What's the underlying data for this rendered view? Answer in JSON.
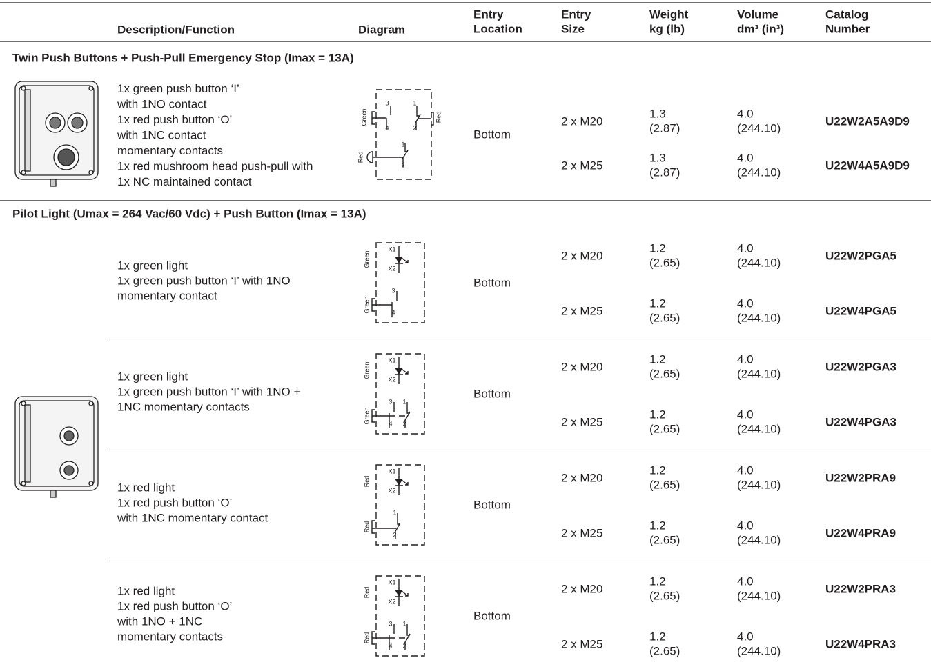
{
  "header": {
    "columns": [
      [
        "Description/Function"
      ],
      [
        "Diagram"
      ],
      [
        "Entry",
        "Location"
      ],
      [
        "Entry",
        "Size"
      ],
      [
        "Weight",
        "kg (lb)"
      ],
      [
        "Volume",
        "dm³ (in³)"
      ],
      [
        "Catalog",
        "Number"
      ]
    ]
  },
  "sections": [
    {
      "title": "Twin Push Buttons + Push-Pull Emergency Stop (Imax = 13A)",
      "groups": [
        {
          "description": [
            "1x green push button ‘I’",
            "with 1NO contact",
            "1x red push button ‘O’",
            "with 1NC contact",
            "momentary contacts",
            "1x red mushroom head push-pull with",
            "1x NC maintained contact"
          ],
          "diagram_labels": [
            "Green",
            "3",
            "4",
            "1",
            "2",
            "Red",
            "Red",
            "1",
            "2"
          ],
          "entry_location": "Bottom",
          "rows": [
            {
              "entry_size": "2 x M20",
              "weight": [
                "1.3",
                "(2.87)"
              ],
              "volume": [
                "4.0",
                "(244.10)"
              ],
              "catalog": "U22W2A5A9D9"
            },
            {
              "entry_size": "2 x M25",
              "weight": [
                "1.3",
                "(2.87)"
              ],
              "volume": [
                "4.0",
                "(244.10)"
              ],
              "catalog": "U22W4A5A9D9"
            }
          ]
        }
      ]
    },
    {
      "title": "Pilot Light (Umax = 264 Vac/60 Vdc) + Push Button (Imax = 13A)",
      "groups": [
        {
          "description": [
            "1x green light",
            "1x green push button ‘I’ with 1NO",
            "momentary contact"
          ],
          "diagram_labels": [
            "X1",
            "X2",
            "Green",
            "Green",
            "3",
            "4"
          ],
          "entry_location": "Bottom",
          "rows": [
            {
              "entry_size": "2 x M20",
              "weight": [
                "1.2",
                "(2.65)"
              ],
              "volume": [
                "4.0",
                "(244.10)"
              ],
              "catalog": "U22W2PGA5"
            },
            {
              "entry_size": "2 x M25",
              "weight": [
                "1.2",
                "(2.65)"
              ],
              "volume": [
                "4.0",
                "(244.10)"
              ],
              "catalog": "U22W4PGA5"
            }
          ]
        },
        {
          "description": [
            "1x green light",
            "1x green push button ‘I’ with 1NO +",
            "1NC momentary contacts"
          ],
          "diagram_labels": [
            "X1",
            "X2",
            "Green",
            "Green",
            "3",
            "4",
            "1",
            "2"
          ],
          "entry_location": "Bottom",
          "rows": [
            {
              "entry_size": "2 x M20",
              "weight": [
                "1.2",
                "(2.65)"
              ],
              "volume": [
                "4.0",
                "(244.10)"
              ],
              "catalog": "U22W2PGA3"
            },
            {
              "entry_size": "2 x M25",
              "weight": [
                "1.2",
                "(2.65)"
              ],
              "volume": [
                "4.0",
                "(244.10)"
              ],
              "catalog": "U22W4PGA3"
            }
          ]
        },
        {
          "description": [
            "1x red light",
            "1x red push button ‘O’",
            "with 1NC momentary contact"
          ],
          "diagram_labels": [
            "X1",
            "X2",
            "Red",
            "Red",
            "1",
            "2"
          ],
          "entry_location": "Bottom",
          "rows": [
            {
              "entry_size": "2 x M20",
              "weight": [
                "1.2",
                "(2.65)"
              ],
              "volume": [
                "4.0",
                "(244.10)"
              ],
              "catalog": "U22W2PRA9"
            },
            {
              "entry_size": "2 x M25",
              "weight": [
                "1.2",
                "(2.65)"
              ],
              "volume": [
                "4.0",
                "(244.10)"
              ],
              "catalog": "U22W4PRA9"
            }
          ]
        },
        {
          "description": [
            "1x red light",
            "1x red push button ‘O’",
            "with 1NO + 1NC",
            "momentary contacts"
          ],
          "diagram_labels": [
            "X1",
            "X2",
            "Red",
            "Red",
            "3",
            "4",
            "1",
            "2"
          ],
          "entry_location": "Bottom",
          "rows": [
            {
              "entry_size": "2 x M20",
              "weight": [
                "1.2",
                "(2.65)"
              ],
              "volume": [
                "4.0",
                "(244.10)"
              ],
              "catalog": "U22W2PRA3"
            },
            {
              "entry_size": "2 x M25",
              "weight": [
                "1.2",
                "(2.65)"
              ],
              "volume": [
                "4.0",
                "(244.10)"
              ],
              "catalog": "U22W4PRA3"
            }
          ]
        }
      ]
    }
  ]
}
